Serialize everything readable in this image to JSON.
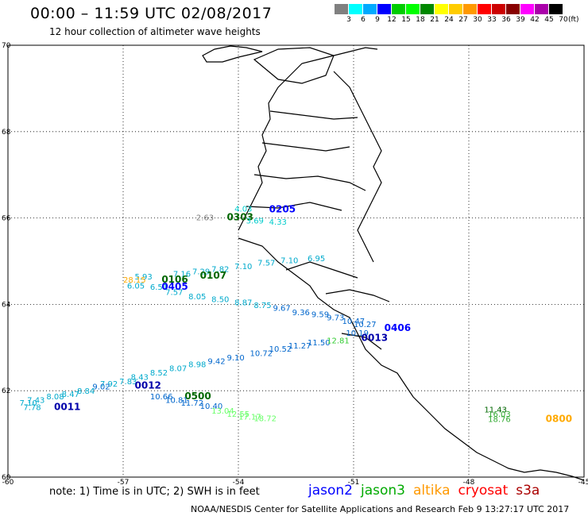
{
  "header": {
    "title": "00:00 – 11:59 UTC 02/08/2017",
    "subtitle": "12 hour collection of altimeter wave heights"
  },
  "colorbar": {
    "colors": [
      "#808080",
      "#00ffff",
      "#00aaff",
      "#0000ff",
      "#00cc00",
      "#00ff00",
      "#008800",
      "#ffff00",
      "#ffcc00",
      "#ff9900",
      "#ff0000",
      "#cc0000",
      "#880000",
      "#ff00ff",
      "#aa00aa",
      "#000000"
    ],
    "labels": [
      "3",
      "6",
      "9",
      "12",
      "15",
      "18",
      "21",
      "24",
      "27",
      "30",
      "33",
      "36",
      "39",
      "42",
      "45",
      "70"
    ],
    "unit": "(ft)"
  },
  "map": {
    "lon_range": [
      -60,
      -45
    ],
    "lat_range": [
      60,
      70
    ],
    "lon_ticks": [
      "-60",
      "-57",
      "-54",
      "-51",
      "-48",
      "-45"
    ],
    "lat_ticks": [
      "70",
      "68",
      "66",
      "64",
      "62",
      "60"
    ],
    "observations": [
      {
        "text": "4.03",
        "lon": -54.1,
        "lat": 66.15,
        "color": "#00cccc"
      },
      {
        "text": "0205",
        "lon": -53.2,
        "lat": 66.13,
        "color": "#0000ff",
        "time": true
      },
      {
        "text": "2.63",
        "lon": -55.1,
        "lat": 65.95,
        "color": "#808080"
      },
      {
        "text": "0303",
        "lon": -54.3,
        "lat": 65.95,
        "color": "#006600",
        "time": true
      },
      {
        "text": "3.69",
        "lon": -53.8,
        "lat": 65.87,
        "color": "#00cccc"
      },
      {
        "text": "4.33",
        "lon": -53.2,
        "lat": 65.85,
        "color": "#00cccc"
      },
      {
        "text": "6.95",
        "lon": -52.2,
        "lat": 65.0,
        "color": "#00aacc"
      },
      {
        "text": "7.10",
        "lon": -52.9,
        "lat": 64.95,
        "color": "#00aacc"
      },
      {
        "text": "7.57",
        "lon": -53.5,
        "lat": 64.9,
        "color": "#00aacc"
      },
      {
        "text": "7.10",
        "lon": -54.1,
        "lat": 64.82,
        "color": "#00aacc"
      },
      {
        "text": "7.82",
        "lon": -54.7,
        "lat": 64.75,
        "color": "#00aacc"
      },
      {
        "text": "7.29",
        "lon": -55.2,
        "lat": 64.7,
        "color": "#00aacc"
      },
      {
        "text": "7.16",
        "lon": -55.7,
        "lat": 64.64,
        "color": "#00aacc"
      },
      {
        "text": "0107",
        "lon": -55.0,
        "lat": 64.6,
        "color": "#006600",
        "time": true
      },
      {
        "text": "5.93",
        "lon": -56.7,
        "lat": 64.58,
        "color": "#00aacc"
      },
      {
        "text": "28.15",
        "lon": -57.0,
        "lat": 64.5,
        "color": "#ffaa00"
      },
      {
        "text": "0106",
        "lon": -56.0,
        "lat": 64.5,
        "color": "#006600",
        "time": true
      },
      {
        "text": "6.05",
        "lon": -56.9,
        "lat": 64.37,
        "color": "#00aacc"
      },
      {
        "text": "6.51",
        "lon": -56.3,
        "lat": 64.34,
        "color": "#00aacc"
      },
      {
        "text": "0405",
        "lon": -56.0,
        "lat": 64.34,
        "color": "#0000ff",
        "time": true
      },
      {
        "text": "7.57",
        "lon": -55.9,
        "lat": 64.22,
        "color": "#00aacc"
      },
      {
        "text": "8.05",
        "lon": -55.3,
        "lat": 64.12,
        "color": "#00aacc"
      },
      {
        "text": "8.50",
        "lon": -54.7,
        "lat": 64.05,
        "color": "#00aacc"
      },
      {
        "text": "8.87",
        "lon": -54.1,
        "lat": 63.98,
        "color": "#00aacc"
      },
      {
        "text": "8.75",
        "lon": -53.6,
        "lat": 63.92,
        "color": "#00aacc"
      },
      {
        "text": "9.67",
        "lon": -53.1,
        "lat": 63.85,
        "color": "#0066cc"
      },
      {
        "text": "9.36",
        "lon": -52.6,
        "lat": 63.75,
        "color": "#0066cc"
      },
      {
        "text": "9.59",
        "lon": -52.1,
        "lat": 63.7,
        "color": "#0066cc"
      },
      {
        "text": "9.73",
        "lon": -51.7,
        "lat": 63.63,
        "color": "#0066cc"
      },
      {
        "text": "10.47",
        "lon": -51.3,
        "lat": 63.55,
        "color": "#0066cc"
      },
      {
        "text": "10.27",
        "lon": -51.0,
        "lat": 63.47,
        "color": "#0066cc"
      },
      {
        "text": "0406",
        "lon": -50.2,
        "lat": 63.38,
        "color": "#0000ff",
        "time": true
      },
      {
        "text": "10.19",
        "lon": -51.2,
        "lat": 63.27,
        "color": "#0066cc"
      },
      {
        "text": "0013",
        "lon": -50.8,
        "lat": 63.15,
        "color": "#0000aa",
        "time": true
      },
      {
        "text": "11.50",
        "lon": -52.2,
        "lat": 63.05,
        "color": "#0066cc"
      },
      {
        "text": "12.81",
        "lon": -51.7,
        "lat": 63.1,
        "color": "#33cc33"
      },
      {
        "text": "11.27",
        "lon": -52.7,
        "lat": 62.98,
        "color": "#0066cc"
      },
      {
        "text": "10.52",
        "lon": -53.2,
        "lat": 62.9,
        "color": "#0066cc"
      },
      {
        "text": "10.72",
        "lon": -53.7,
        "lat": 62.8,
        "color": "#0066cc"
      },
      {
        "text": "9.10",
        "lon": -54.3,
        "lat": 62.7,
        "color": "#0066cc"
      },
      {
        "text": "9.42",
        "lon": -54.8,
        "lat": 62.62,
        "color": "#0066cc"
      },
      {
        "text": "8.98",
        "lon": -55.3,
        "lat": 62.55,
        "color": "#00aacc"
      },
      {
        "text": "8.07",
        "lon": -55.8,
        "lat": 62.45,
        "color": "#00aacc"
      },
      {
        "text": "8.52",
        "lon": -56.3,
        "lat": 62.35,
        "color": "#00aacc"
      },
      {
        "text": "8.43",
        "lon": -56.8,
        "lat": 62.25,
        "color": "#00aacc"
      },
      {
        "text": "7.83",
        "lon": -57.1,
        "lat": 62.15,
        "color": "#00aacc"
      },
      {
        "text": "0012",
        "lon": -56.7,
        "lat": 62.05,
        "color": "#0000aa",
        "time": true
      },
      {
        "text": "7.92",
        "lon": -57.6,
        "lat": 62.1,
        "color": "#00aacc"
      },
      {
        "text": "9.02",
        "lon": -57.8,
        "lat": 62.03,
        "color": "#0066cc"
      },
      {
        "text": "8.84",
        "lon": -58.2,
        "lat": 61.93,
        "color": "#00aacc"
      },
      {
        "text": "8.47",
        "lon": -58.6,
        "lat": 61.86,
        "color": "#00aacc"
      },
      {
        "text": "8.08",
        "lon": -59.0,
        "lat": 61.8,
        "color": "#00aacc"
      },
      {
        "text": "7.43",
        "lon": -59.5,
        "lat": 61.72,
        "color": "#00aacc"
      },
      {
        "text": "7.10",
        "lon": -59.7,
        "lat": 61.65,
        "color": "#00aacc"
      },
      {
        "text": "7.78",
        "lon": -59.6,
        "lat": 61.55,
        "color": "#00aacc"
      },
      {
        "text": "0011",
        "lon": -58.8,
        "lat": 61.55,
        "color": "#0000aa",
        "time": true
      },
      {
        "text": "10.66",
        "lon": -56.3,
        "lat": 61.8,
        "color": "#0066cc"
      },
      {
        "text": "0500",
        "lon": -55.4,
        "lat": 61.8,
        "color": "#006600",
        "time": true
      },
      {
        "text": "10.81",
        "lon": -55.9,
        "lat": 61.72,
        "color": "#0066cc"
      },
      {
        "text": "11.72",
        "lon": -55.5,
        "lat": 61.65,
        "color": "#0066cc"
      },
      {
        "text": "10.40",
        "lon": -55.0,
        "lat": 61.58,
        "color": "#0066cc"
      },
      {
        "text": "13.04",
        "lon": -54.7,
        "lat": 61.47,
        "color": "#66ff66"
      },
      {
        "text": "12.55",
        "lon": -54.3,
        "lat": 61.4,
        "color": "#66ff66"
      },
      {
        "text": "17.17",
        "lon": -54.0,
        "lat": 61.33,
        "color": "#66ff66"
      },
      {
        "text": "18.72",
        "lon": -53.6,
        "lat": 61.3,
        "color": "#66ff66"
      },
      {
        "text": "11.43",
        "lon": -47.6,
        "lat": 61.5,
        "color": "#006600"
      },
      {
        "text": "16.03",
        "lon": -47.5,
        "lat": 61.4,
        "color": "#33aa33"
      },
      {
        "text": "18.76",
        "lon": -47.5,
        "lat": 61.28,
        "color": "#33aa33"
      },
      {
        "text": "0800",
        "lon": -46.0,
        "lat": 61.28,
        "color": "#ffaa00",
        "time": true
      }
    ]
  },
  "footer": {
    "note": "note: 1) Time is in UTC; 2) SWH is in feet",
    "legend": [
      {
        "label": "jason2",
        "color": "#0000ff"
      },
      {
        "label": "jason3",
        "color": "#00aa00"
      },
      {
        "label": "altika",
        "color": "#ff9900"
      },
      {
        "label": "cryosat",
        "color": "#ff0000"
      },
      {
        "label": "s3a",
        "color": "#aa0000"
      }
    ],
    "credits": "NOAA/NESDIS Center for Satellite Applications and Research   Feb  9 13:27:17 UTC 2017"
  }
}
